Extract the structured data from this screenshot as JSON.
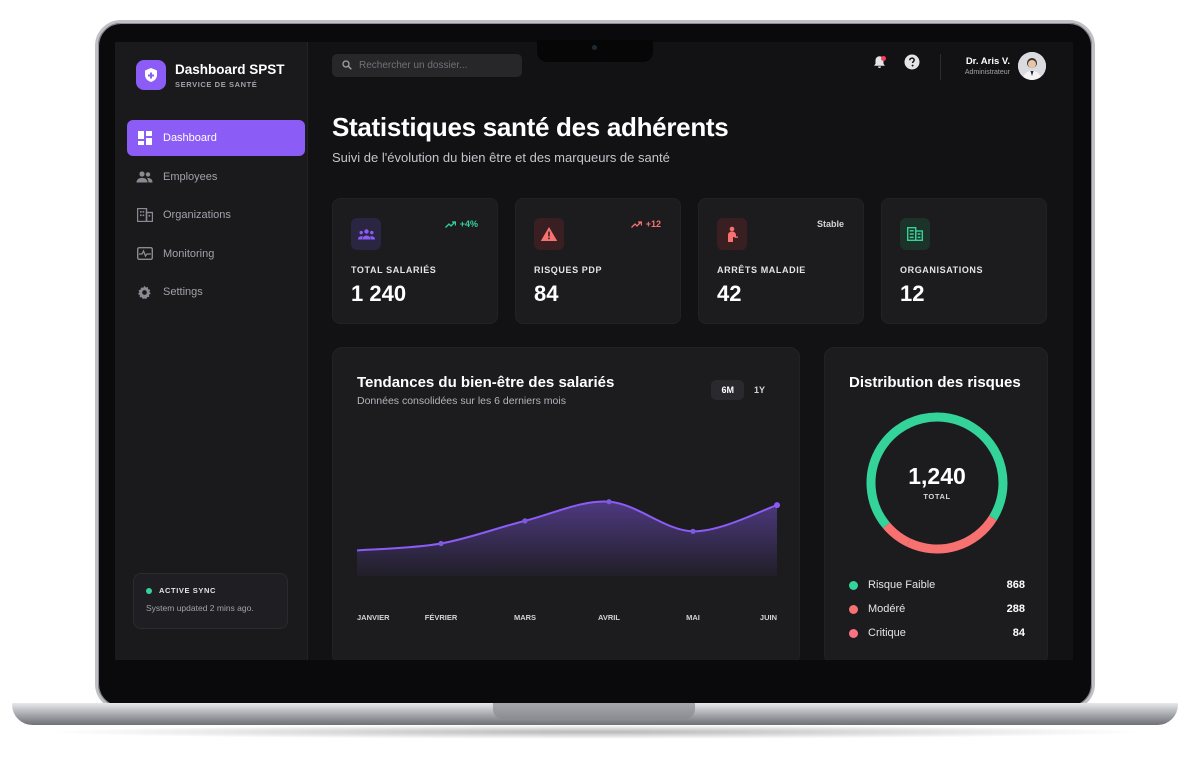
{
  "app": {
    "title": "Dashboard SPST",
    "subtitle": "SERVICE DE SANTÉ"
  },
  "sidebar": {
    "items": [
      {
        "label": "Dashboard",
        "icon": "dashboard-icon",
        "active": true
      },
      {
        "label": "Employees",
        "icon": "people-icon",
        "active": false
      },
      {
        "label": "Organizations",
        "icon": "building-icon",
        "active": false
      },
      {
        "label": "Monitoring",
        "icon": "monitor-heart-icon",
        "active": false
      },
      {
        "label": "Settings",
        "icon": "gear-icon",
        "active": false
      }
    ],
    "sync": {
      "title": "ACTIVE SYNC",
      "status": "System updated 2 mins ago."
    }
  },
  "header": {
    "search_placeholder": "Rechercher un dossier...",
    "user_name": "Dr. Aris V.",
    "user_role": "Administrateur"
  },
  "page": {
    "title": "Statistiques santé des adhérents",
    "subtitle": "Suivi de l'évolution du bien être et des marqueurs de santé"
  },
  "stats": [
    {
      "label": "TOTAL SALARIÉS",
      "value": "1 240",
      "trend": "+4%",
      "trend_color": "#34d399",
      "icon": "group-icon",
      "icon_color": "#8b5cf6",
      "icon_bg": "#2a2540"
    },
    {
      "label": "RISQUES PDP",
      "value": "84",
      "trend": "+12",
      "trend_color": "#f87171",
      "icon": "warning-icon",
      "icon_color": "#f87171",
      "icon_bg": "#3a1f22"
    },
    {
      "label": "ARRÊTS MALADIE",
      "value": "42",
      "trend": "Stable",
      "trend_color": "#d4d4d8",
      "icon": "sick-person-icon",
      "icon_color": "#f87171",
      "icon_bg": "#3a1f22"
    },
    {
      "label": "ORGANISATIONS",
      "value": "12",
      "trend": "",
      "trend_color": "#34d399",
      "icon": "building-grid-icon",
      "icon_color": "#34d399",
      "icon_bg": "#1d3329"
    }
  ],
  "trend_panel": {
    "title": "Tendances du bien-être des salariés",
    "subtitle": "Données consolidées sur les 6 derniers mois",
    "toggle": [
      "6M",
      "1Y"
    ],
    "active_toggle": "6M"
  },
  "chart_data": {
    "type": "area",
    "title": "Tendances du bien-être des salariés",
    "categories": [
      "JANVIER",
      "FÉVRIER",
      "MARS",
      "AVRIL",
      "MAI",
      "JUIN"
    ],
    "series": [
      {
        "values": [
          56,
          60,
          73,
          84,
          67,
          82
        ]
      }
    ],
    "ylim": [
      0,
      120
    ],
    "color": "#8b5cf6",
    "grid": false,
    "legend": "none"
  },
  "risk_panel": {
    "title": "Distribution des risques",
    "total_value": "1,240",
    "total_label": "TOTAL",
    "segments": [
      {
        "label": "Risque Faible",
        "value": 868,
        "display": "868",
        "color": "#34d399"
      },
      {
        "label": "Modéré",
        "value": 288,
        "display": "288",
        "color": "#f87171"
      },
      {
        "label": "Critique",
        "value": 84,
        "display": "84",
        "color": "#fb7185"
      }
    ]
  }
}
